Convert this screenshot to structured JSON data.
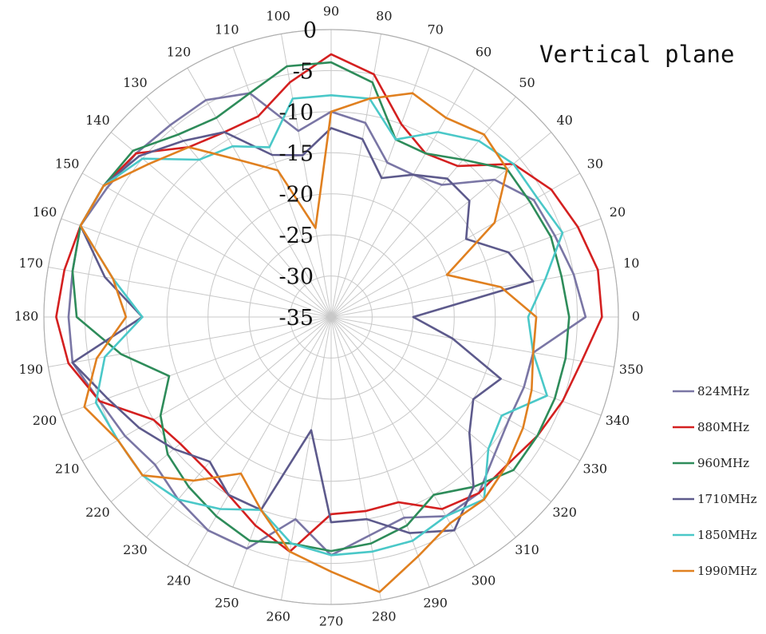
{
  "chart_data": {
    "type": "polar_line",
    "title": "Vertical plane",
    "r_range": [
      -35,
      0
    ],
    "r_ticks": [
      0,
      -5,
      -10,
      -15,
      -20,
      -25,
      -30,
      -35
    ],
    "r_tick_labels": [
      "0",
      "-5",
      "-10",
      "-15",
      "-20",
      "-25",
      "-30",
      "-35"
    ],
    "angle_labels": [
      "0",
      "10",
      "20",
      "30",
      "40",
      "50",
      "60",
      "70",
      "80",
      "90",
      "100",
      "110",
      "120",
      "130",
      "140",
      "150",
      "160",
      "170",
      "180",
      "190",
      "200",
      "210",
      "220",
      "230",
      "240",
      "250",
      "260",
      "270",
      "280",
      "290",
      "300",
      "310",
      "320",
      "330",
      "340",
      "350"
    ],
    "grid": true,
    "legend_position": "right",
    "angles": [
      0,
      10,
      20,
      30,
      40,
      50,
      60,
      70,
      80,
      90,
      100,
      110,
      120,
      130,
      140,
      150,
      160,
      170,
      180,
      190,
      200,
      210,
      220,
      230,
      240,
      250,
      260,
      270,
      280,
      290,
      300,
      310,
      320,
      330,
      340,
      350
    ],
    "series": [
      {
        "name": "824MHz",
        "color": "#7a76a5",
        "values": [
          -4,
          -5,
          -6,
          -6.5,
          -9,
          -14,
          -15,
          -15,
          -11,
          -10,
          -12,
          -6,
          -4.5,
          -4.5,
          -4,
          -3.5,
          -2.5,
          -3,
          -3,
          -3,
          -5,
          -6,
          -7,
          -6,
          -5,
          -5,
          -10,
          -6,
          -8,
          -9,
          -7,
          -7,
          -9,
          -10,
          -10,
          -10
        ]
      },
      {
        "name": "880MHz",
        "color": "#d42020",
        "values": [
          -2,
          -2,
          -3,
          -4,
          -6,
          -11,
          -12,
          -10,
          -5,
          -3,
          -6,
          -9,
          -9,
          -8,
          -4,
          -3,
          -2.5,
          -2,
          -1.5,
          -2.5,
          -5,
          -10,
          -11,
          -11,
          -10,
          -8,
          -6,
          -11,
          -11,
          -11,
          -8,
          -7,
          -7,
          -6,
          -5,
          -4
        ]
      },
      {
        "name": "960MHz",
        "color": "#2e8c5a",
        "values": [
          -6,
          -6.5,
          -6.5,
          -7,
          -7,
          -10,
          -12,
          -12,
          -6,
          -4,
          -4,
          -6,
          -7,
          -6,
          -3.5,
          -3,
          -2.5,
          -3,
          -4,
          -9,
          -14,
          -11,
          -9,
          -8,
          -7,
          -6,
          -7,
          -6.5,
          -7,
          -8,
          -10,
          -8,
          -6,
          -6,
          -6,
          -6
        ]
      },
      {
        "name": "1710MHz",
        "color": "#5d5a8c",
        "values": [
          -25,
          -10,
          -12,
          -16,
          -13,
          -13,
          -15,
          -17,
          -13,
          -12,
          -15,
          -14,
          -9,
          -7,
          -4.5,
          -3,
          -2.5,
          -7,
          -12,
          -3,
          -6,
          -8,
          -10,
          -12,
          -10,
          -10,
          -21,
          -10,
          -10,
          -7,
          -5,
          -8,
          -13,
          -15,
          -13,
          -20
        ]
      },
      {
        "name": "1850MHz",
        "color": "#4ac8c8",
        "values": [
          -11,
          -8.5,
          -5,
          -6,
          -6,
          -7,
          -9,
          -12,
          -8,
          -8,
          -8,
          -13,
          -11,
          -10,
          -5,
          -3,
          -2.5,
          -8,
          -12,
          -7,
          -4.5,
          -5,
          -5,
          -6,
          -8,
          -10,
          -7,
          -6,
          -6,
          -6,
          -7,
          -6,
          -10,
          -11,
          -7,
          -10
        ]
      },
      {
        "name": "1990MHz",
        "color": "#e08020",
        "values": [
          -10,
          -14,
          -20,
          -12,
          -7,
          -6,
          -7,
          -6,
          -8,
          -10,
          -24,
          -16,
          -13,
          -8,
          -6,
          -3,
          -2.5,
          -8,
          -10,
          -6,
          -3,
          -5,
          -5,
          -9,
          -13,
          -10,
          -6,
          -4,
          -1,
          -4,
          -6,
          -6,
          -7,
          -8,
          -9,
          -10
        ]
      }
    ]
  }
}
